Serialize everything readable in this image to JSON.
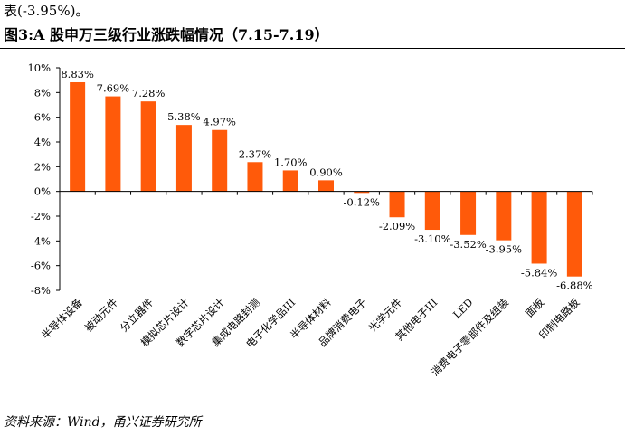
{
  "top_text": "表(-3.95%)。",
  "figure_title": "图3:A 股申万三级行业涨跌幅情况（7.15-7.19）",
  "source": "资料来源：Wind，甬兴证券研究所",
  "colors": {
    "bar": "#ff5a0a",
    "axis": "#000000"
  },
  "chart_data": {
    "type": "bar",
    "title": "图3:A 股申万三级行业涨跌幅情况（7.15-7.19）",
    "xlabel": "",
    "ylabel": "",
    "ylim": [
      -8,
      10
    ],
    "yticks": [
      10,
      8,
      6,
      4,
      2,
      0,
      -2,
      -4,
      -6,
      -8
    ],
    "ytick_labels": [
      "10%",
      "8%",
      "6%",
      "4%",
      "2%",
      "0%",
      "-2%",
      "-4%",
      "-6%",
      "-8%"
    ],
    "grid": false,
    "legend": "none",
    "categories": [
      "半导体设备",
      "被动元件",
      "分立器件",
      "模拟芯片设计",
      "数字芯片设计",
      "集成电路封测",
      "电子化学品III",
      "半导体材料",
      "品牌消费电子",
      "光学元件",
      "其他电子III",
      "LED",
      "消费电子零部件及组装",
      "面板",
      "印制电路板"
    ],
    "values": [
      8.83,
      7.69,
      7.28,
      5.38,
      4.97,
      2.37,
      1.7,
      0.9,
      -0.12,
      -2.09,
      -3.1,
      -3.52,
      -3.95,
      -5.84,
      -6.88
    ],
    "value_labels": [
      "8.83%",
      "7.69%",
      "7.28%",
      "5.38%",
      "4.97%",
      "2.37%",
      "1.70%",
      "0.90%",
      "-0.12%",
      "-2.09%",
      "-3.10%",
      "-3.52%",
      "-3.95%",
      "-5.84%",
      "-6.88%"
    ]
  }
}
